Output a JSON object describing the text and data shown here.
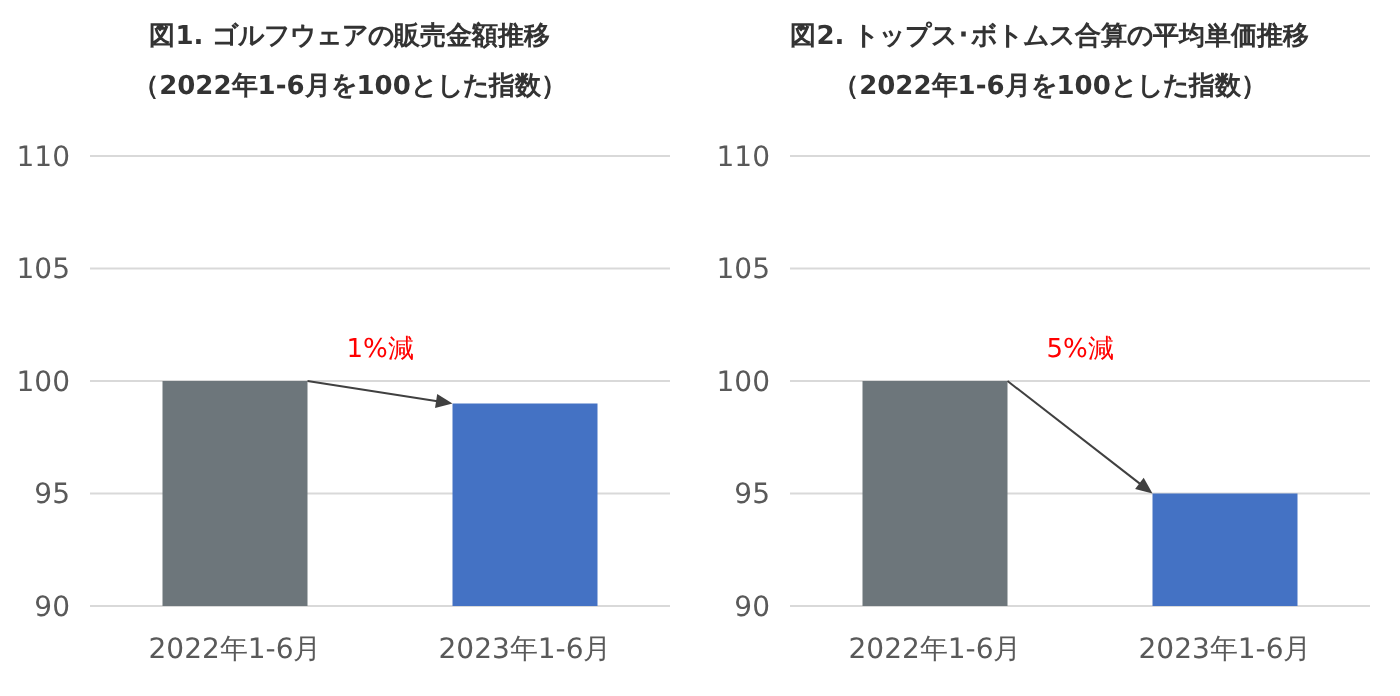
{
  "chart_data": [
    {
      "type": "bar",
      "title": "図1. ゴルフウェアの販売金額推移",
      "subtitle": "（2022年1-6月を100とした指数）",
      "categories": [
        "2022年1-6月",
        "2023年1-6月"
      ],
      "values": [
        100,
        99
      ],
      "colors": [
        "#6d767b",
        "#4472c4"
      ],
      "ylim": [
        90,
        110
      ],
      "yticks": [
        90,
        95,
        100,
        105,
        110
      ],
      "grid": "y",
      "annotations": [
        "1%減"
      ]
    },
    {
      "type": "bar",
      "title": "図2. トップス･ボトムス合算の平均単価推移",
      "subtitle": "（2022年1-6月を100とした指数）",
      "categories": [
        "2022年1-6月",
        "2023年1-6月"
      ],
      "values": [
        100,
        95
      ],
      "colors": [
        "#6d767b",
        "#4472c4"
      ],
      "ylim": [
        90,
        110
      ],
      "yticks": [
        90,
        95,
        100,
        105,
        110
      ],
      "grid": "y",
      "annotations": [
        "5%減"
      ]
    }
  ]
}
